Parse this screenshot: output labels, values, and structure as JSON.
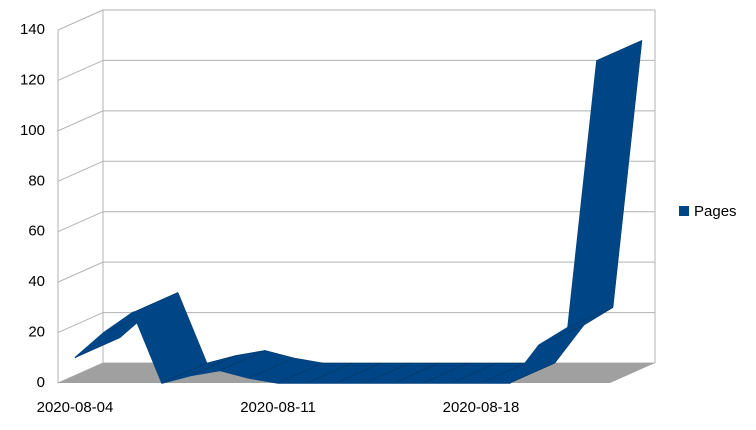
{
  "chart_data": {
    "type": "ribbon-line",
    "categories": [
      "2020-08-04",
      null,
      null,
      null,
      null,
      null,
      null,
      "2020-08-11",
      null,
      null,
      null,
      null,
      null,
      null,
      "2020-08-18",
      null,
      null,
      null,
      null
    ],
    "series": [
      {
        "name": "Pages",
        "color": "#004586",
        "values": [
          10,
          20,
          28,
          0,
          3,
          5,
          2,
          0,
          0,
          0,
          0,
          0,
          0,
          0,
          0,
          0,
          15,
          22,
          128
        ]
      }
    ],
    "ylim": [
      0,
      140
    ],
    "yticks": [
      0,
      20,
      40,
      60,
      80,
      100,
      120,
      140
    ],
    "grid": true,
    "floor_color": "#a0a0a0",
    "legend": "right"
  }
}
